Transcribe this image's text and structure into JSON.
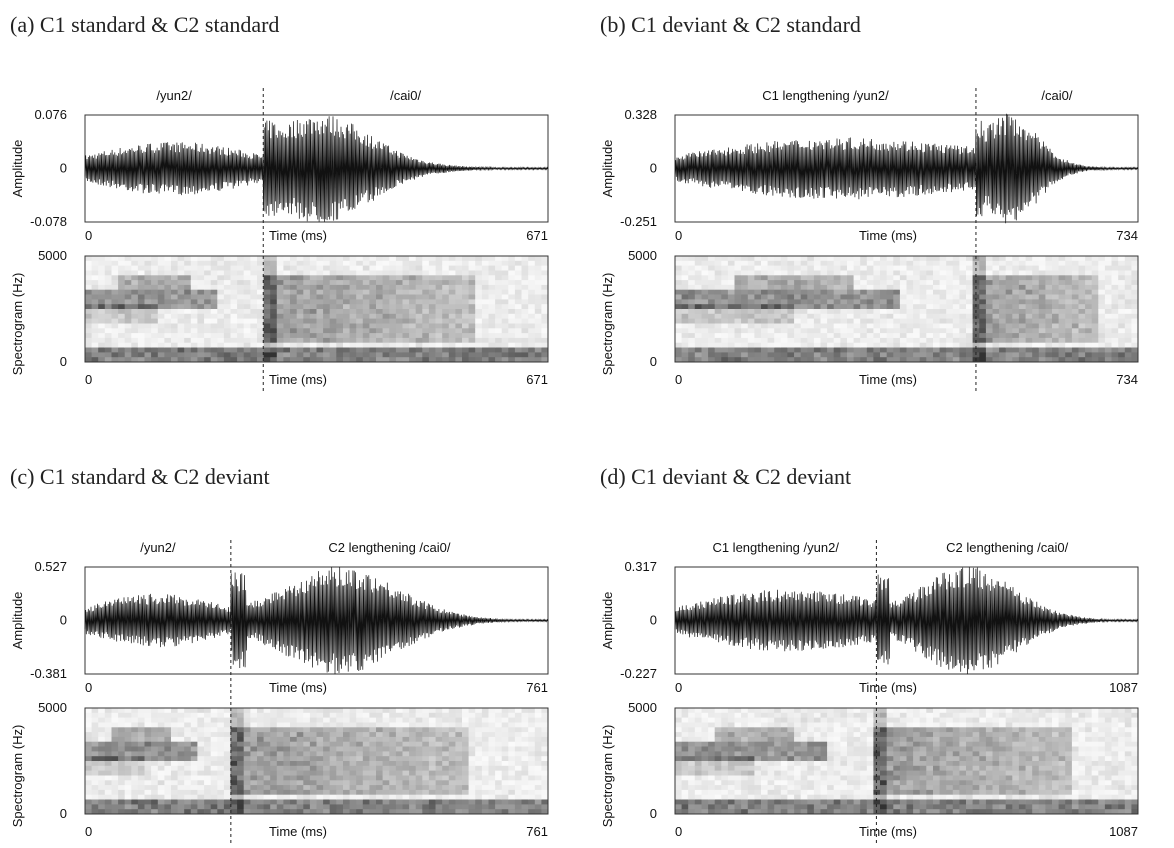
{
  "panels": [
    {
      "caption": "(a)  C1 standard & C2 standard",
      "segments": [
        "/yun2/",
        "/cai0/"
      ],
      "amplitude_label": "Amplitude",
      "amplitude_ticks": [
        0.076,
        0,
        -0.078
      ],
      "spectrogram_label": "Spectrogram (Hz)",
      "spectrogram_ticks": [
        5000,
        0
      ],
      "time_label": "Time  (ms)",
      "time_range": [
        0,
        671
      ]
    },
    {
      "caption": "(b) C1 deviant & C2 standard",
      "segments": [
        "C1 lengthening  /yun2/",
        "/cai0/"
      ],
      "amplitude_label": "Amplitude",
      "amplitude_ticks": [
        0.328,
        0,
        -0.251
      ],
      "spectrogram_label": "Spectrogram (Hz)",
      "spectrogram_ticks": [
        5000,
        0
      ],
      "time_label": "Time  (ms)",
      "time_range": [
        0,
        734
      ]
    },
    {
      "caption": "(c)  C1 standard & C2 deviant",
      "segments": [
        "/yun2/",
        "C2 lengthening /cai0/"
      ],
      "amplitude_label": "Amplitude",
      "amplitude_ticks": [
        0.527,
        0,
        -0.381
      ],
      "spectrogram_label": "Spectrogram (Hz)",
      "spectrogram_ticks": [
        5000,
        0
      ],
      "time_label": "Time  (ms)",
      "time_range": [
        0,
        761
      ]
    },
    {
      "caption": "(d) C1 deviant & C2 deviant",
      "segments": [
        "C1 lengthening /yun2/",
        "C2 lengthening /cai0/"
      ],
      "amplitude_label": "Amplitude",
      "amplitude_ticks": [
        0.317,
        0,
        -0.227
      ],
      "spectrogram_label": "Spectrogram (Hz)",
      "spectrogram_ticks": [
        5000,
        0
      ],
      "time_label": "Time  (ms)",
      "time_range": [
        0,
        1087
      ]
    }
  ]
}
